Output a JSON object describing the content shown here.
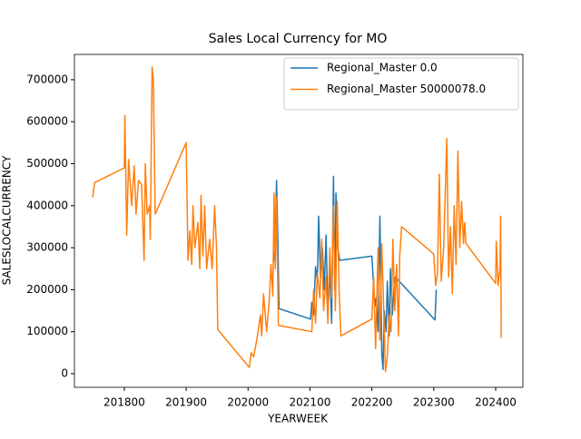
{
  "chart_data": {
    "type": "line",
    "title": "Sales Local Currency for MO",
    "x_label": "YEARWEEK",
    "y_label": "SALESLOCALCURRENCY",
    "xlim": [
      201719.5,
      202444
    ],
    "ylim": [
      -32400,
      760300
    ],
    "xticks": [
      201800,
      201900,
      202000,
      202100,
      202200,
      202300,
      202400
    ],
    "yticks": [
      0,
      100000,
      200000,
      300000,
      400000,
      500000,
      600000,
      700000
    ],
    "legend": "upper right",
    "series": [
      {
        "name": "Regional_Master 0.0",
        "color": "#1f77b4",
        "x": [
          202041,
          202044,
          202046,
          202048,
          202050,
          202101,
          202103,
          202106,
          202109,
          202112,
          202114,
          202117,
          202120,
          202123,
          202126,
          202129,
          202132,
          202135,
          202138,
          202140,
          202142,
          202145,
          202148,
          202200,
          202202,
          202205,
          202207,
          202210,
          202213,
          202216,
          202218,
          202220,
          202223,
          202225,
          202228,
          202230,
          202233,
          202236,
          202238,
          202302,
          202304
        ],
        "values": [
          265000,
          300000,
          460000,
          330000,
          155000,
          130000,
          170000,
          140000,
          255000,
          220000,
          375000,
          230000,
          300000,
          200000,
          330000,
          140000,
          250000,
          120000,
          470000,
          200000,
          430000,
          300000,
          270000,
          280000,
          230000,
          160000,
          180000,
          100000,
          375000,
          50000,
          10000,
          150000,
          100000,
          220000,
          90000,
          250000,
          140000,
          210000,
          230000,
          128000,
          200000
        ]
      },
      {
        "name": "Regional_Master 50000078.0",
        "color": "#ff7f0e",
        "x": [
          201749,
          201752,
          201800,
          201801,
          201804,
          201807,
          201812,
          201816,
          201819,
          201823,
          201828,
          201832,
          201834,
          201837,
          201841,
          201842,
          201845,
          201847,
          201850,
          201900,
          201903,
          201906,
          201909,
          201911,
          201914,
          201919,
          201922,
          201924,
          201927,
          201930,
          201933,
          201938,
          201942,
          201946,
          201949,
          201951,
          202002,
          202005,
          202009,
          202014,
          202020,
          202022,
          202025,
          202030,
          202034,
          202037,
          202040,
          202042,
          202044,
          202046,
          202049,
          202103,
          202106,
          202109,
          202112,
          202116,
          202119,
          202122,
          202126,
          202129,
          202132,
          202135,
          202138,
          202141,
          202144,
          202147,
          202150,
          202200,
          202203,
          202206,
          202210,
          202213,
          202216,
          202219,
          202222,
          202225,
          202228,
          202231,
          202234,
          202237,
          202240,
          202243,
          202245,
          202248,
          202300,
          202303,
          202306,
          202309,
          202312,
          202316,
          202318,
          202321,
          202324,
          202327,
          202330,
          202333,
          202336,
          202339,
          202342,
          202345,
          202348,
          202350,
          202352,
          202400,
          202401,
          202404,
          202407,
          202408,
          202409
        ],
        "values": [
          420000,
          455000,
          490000,
          615000,
          330000,
          510000,
          400000,
          495000,
          380000,
          460000,
          450000,
          270000,
          500000,
          380000,
          400000,
          320000,
          730000,
          700000,
          380000,
          550000,
          270000,
          340000,
          260000,
          400000,
          300000,
          360000,
          250000,
          425000,
          280000,
          400000,
          250000,
          320000,
          250000,
          400000,
          300000,
          105000,
          15000,
          50000,
          40000,
          80000,
          140000,
          90000,
          190000,
          100000,
          170000,
          260000,
          185000,
          430000,
          250000,
          420000,
          115000,
          100000,
          200000,
          120000,
          240000,
          180000,
          320000,
          150000,
          230000,
          120000,
          300000,
          180000,
          400000,
          150000,
          410000,
          200000,
          90000,
          130000,
          230000,
          60000,
          300000,
          80000,
          310000,
          160000,
          5000,
          40000,
          140000,
          100000,
          320000,
          150000,
          260000,
          90000,
          280000,
          350000,
          285000,
          210000,
          240000,
          475000,
          220000,
          300000,
          400000,
          560000,
          230000,
          350000,
          190000,
          400000,
          260000,
          530000,
          300000,
          410000,
          310000,
          360000,
          310000,
          215000,
          315000,
          210000,
          250000,
          375000,
          85000
        ]
      }
    ]
  }
}
